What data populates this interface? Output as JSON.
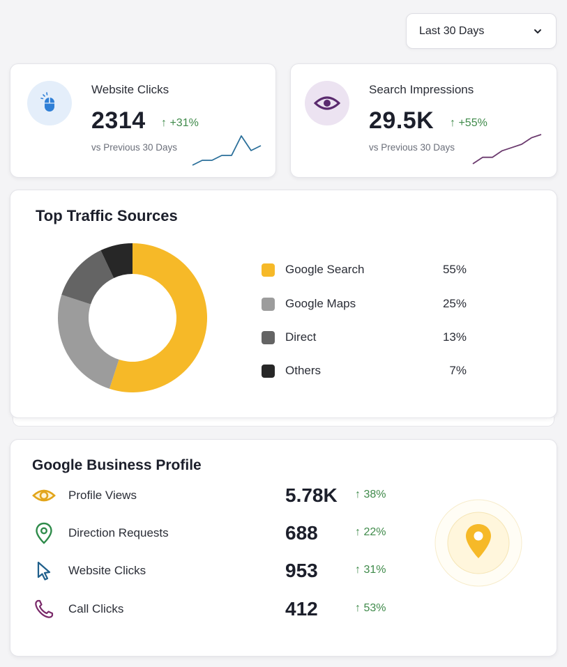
{
  "date_range": {
    "selected": "Last 30 Days"
  },
  "kpis": [
    {
      "title": "Website Clicks",
      "value": "2314",
      "delta": "↑ +31%",
      "subtitle": "vs Previous 30 Days",
      "icon": "mouse-icon",
      "accent": "#2f7fd6",
      "sparkline": [
        3,
        4,
        4,
        5,
        5,
        9,
        6,
        7
      ]
    },
    {
      "title": "Search Impressions",
      "value": "29.5K",
      "delta": "↑ +55%",
      "subtitle": "vs Previous 30 Days",
      "icon": "eye-icon",
      "accent": "#5a2a6e",
      "sparkline": [
        1,
        3,
        3,
        5,
        6,
        7,
        9,
        10
      ]
    }
  ],
  "traffic": {
    "title": "Top Traffic Sources",
    "items": [
      {
        "label": "Google Search",
        "pct": "55%",
        "color": "#f6b928"
      },
      {
        "label": "Google Maps",
        "pct": "25%",
        "color": "#9c9c9c"
      },
      {
        "label": "Direct",
        "pct": "13%",
        "color": "#646464"
      },
      {
        "label": "Others",
        "pct": "7%",
        "color": "#272727"
      }
    ]
  },
  "chart_data": {
    "type": "pie",
    "categories": [
      "Google Search",
      "Google Maps",
      "Direct",
      "Others"
    ],
    "values": [
      55,
      25,
      13,
      7
    ],
    "title": "Top Traffic Sources",
    "legend": "right"
  },
  "gbp": {
    "title": "Google Business Profile",
    "rows": [
      {
        "label": "Profile Views",
        "value": "5.78K",
        "delta": "↑ 38%",
        "icon": "eye-icon"
      },
      {
        "label": "Direction Requests",
        "value": "688",
        "delta": "↑ 22%",
        "icon": "location-pin-icon"
      },
      {
        "label": "Website Clicks",
        "value": "953",
        "delta": "↑ 31%",
        "icon": "cursor-icon"
      },
      {
        "label": "Call Clicks",
        "value": "412",
        "delta": "↑ 53%",
        "icon": "phone-icon"
      }
    ],
    "map_pin_icon": "map-pin-icon"
  },
  "colors": {
    "positive": "#3f8a4a",
    "accent_yellow": "#f6b928",
    "blue": "#2f7fd6",
    "purple": "#5a2a6e"
  }
}
